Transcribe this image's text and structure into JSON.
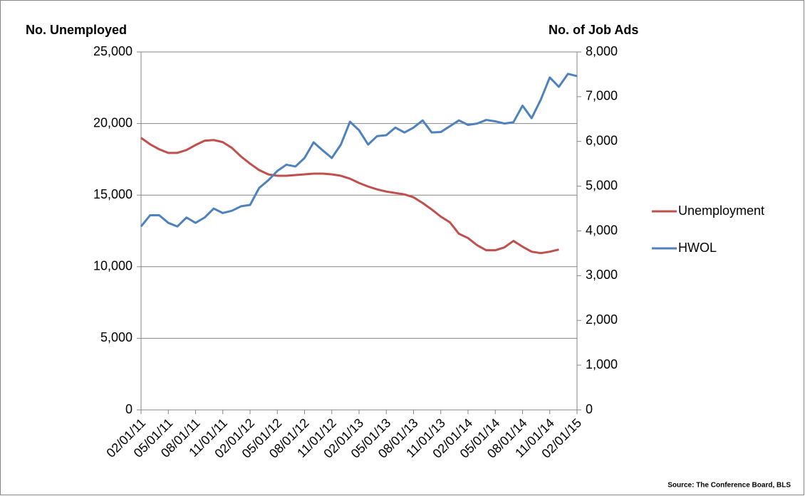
{
  "chart_data": {
    "type": "line",
    "y_label": "No. Unemployed",
    "y2_label": "No. of Job Ads",
    "source": "Source: The Conference Board, BLS",
    "categories": [
      "02/01/11",
      null,
      null,
      "05/01/11",
      null,
      null,
      "08/01/11",
      null,
      null,
      "11/01/11",
      null,
      null,
      "02/01/12",
      null,
      null,
      "05/01/12",
      null,
      null,
      "08/01/12",
      null,
      null,
      "11/01/12",
      null,
      null,
      "02/01/13",
      null,
      null,
      "05/01/13",
      null,
      null,
      "08/01/13",
      null,
      null,
      "11/01/13",
      null,
      null,
      "02/01/14",
      null,
      null,
      "05/01/14",
      null,
      null,
      "08/01/14",
      null,
      null,
      "11/01/14",
      null,
      null,
      "02/01/15"
    ],
    "series": [
      {
        "name": "Unemployment",
        "color": "#c0504d",
        "axis": "y",
        "values": [
          19000,
          18550,
          18200,
          17950,
          17950,
          18150,
          18500,
          18800,
          18850,
          18700,
          18300,
          17700,
          17200,
          16750,
          16450,
          16350,
          16350,
          16400,
          16450,
          16500,
          16500,
          16450,
          16350,
          16150,
          15850,
          15600,
          15400,
          15250,
          15150,
          15050,
          14850,
          14450,
          14000,
          13500,
          13100,
          12300,
          12000,
          11500,
          11150,
          11150,
          11350,
          11800,
          11400,
          11050,
          10950,
          11050,
          11200,
          null,
          null
        ]
      },
      {
        "name": "HWOL",
        "color": "#4f81bd",
        "axis": "y2",
        "values": [
          4100,
          4350,
          4350,
          4180,
          4100,
          4300,
          4180,
          4300,
          4500,
          4400,
          4450,
          4550,
          4580,
          4960,
          5130,
          5340,
          5480,
          5440,
          5630,
          5980,
          5800,
          5630,
          5930,
          6440,
          6250,
          5930,
          6120,
          6140,
          6310,
          6200,
          6310,
          6470,
          6200,
          6210,
          6340,
          6470,
          6370,
          6400,
          6480,
          6450,
          6400,
          6430,
          6800,
          6520,
          6930,
          7430,
          7220,
          7510,
          7460
        ]
      }
    ],
    "ylim": [
      0,
      25000
    ],
    "yticks": [
      0,
      {
        "value": 5000,
        "label": "5,000"
      },
      {
        "value": 10000,
        "label": "10,000"
      },
      {
        "value": 15000,
        "label": "15,000"
      },
      {
        "value": 20000,
        "label": "20,000"
      },
      {
        "value": 25000,
        "label": "25,000"
      }
    ],
    "y2lim": [
      0,
      8000
    ],
    "y2ticks": [
      0,
      {
        "value": 1000,
        "label": "1,000"
      },
      {
        "value": 2000,
        "label": "2,000"
      },
      {
        "value": 3000,
        "label": "3,000"
      },
      {
        "value": 4000,
        "label": "4,000"
      },
      {
        "value": 5000,
        "label": "5,000"
      },
      {
        "value": 6000,
        "label": "6,000"
      },
      {
        "value": 7000,
        "label": "7,000"
      },
      {
        "value": 8000,
        "label": "8,000"
      }
    ],
    "grid": true,
    "legend": "right"
  }
}
